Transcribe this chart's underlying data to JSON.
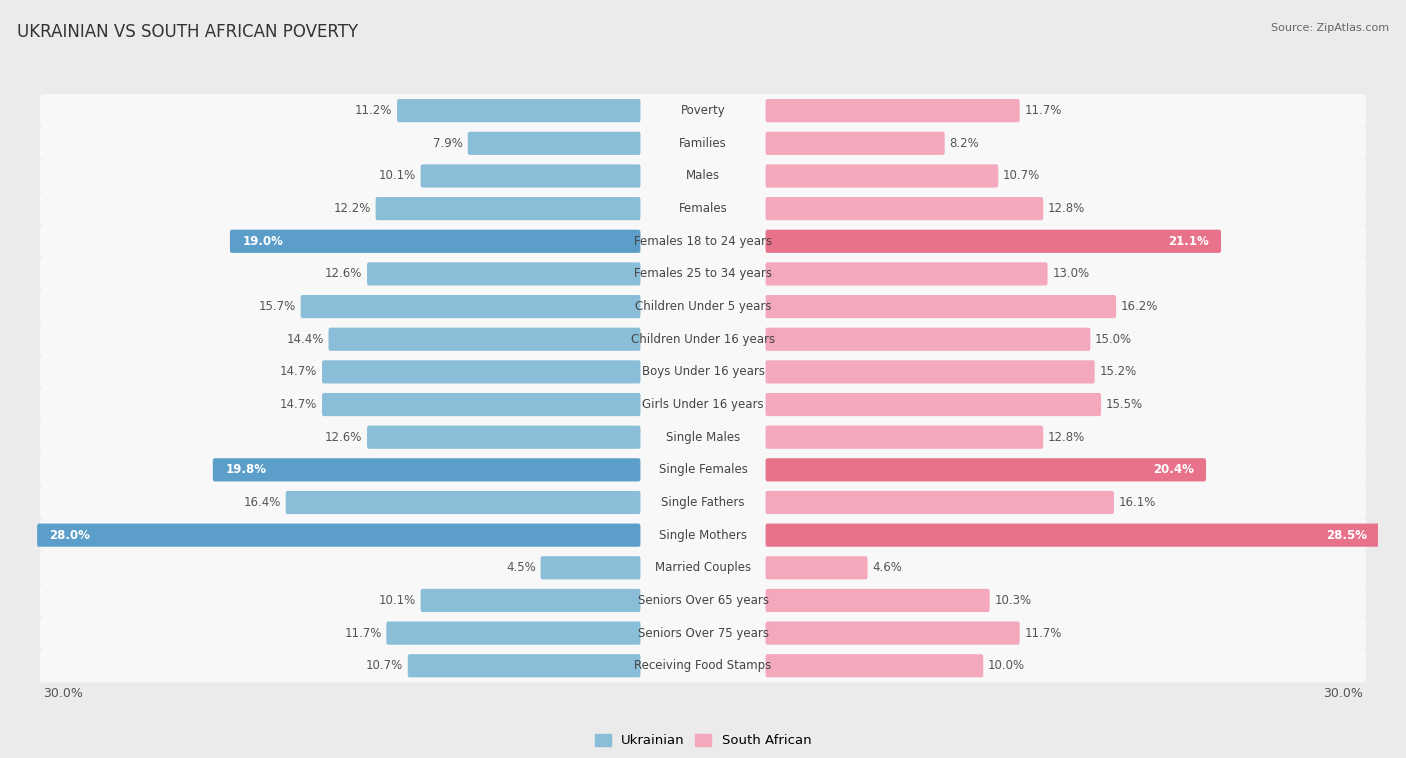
{
  "title": "UKRAINIAN VS SOUTH AFRICAN POVERTY",
  "source": "Source: ZipAtlas.com",
  "categories": [
    "Poverty",
    "Families",
    "Males",
    "Females",
    "Females 18 to 24 years",
    "Females 25 to 34 years",
    "Children Under 5 years",
    "Children Under 16 years",
    "Boys Under 16 years",
    "Girls Under 16 years",
    "Single Males",
    "Single Females",
    "Single Fathers",
    "Single Mothers",
    "Married Couples",
    "Seniors Over 65 years",
    "Seniors Over 75 years",
    "Receiving Food Stamps"
  ],
  "ukrainian": [
    11.2,
    7.9,
    10.1,
    12.2,
    19.0,
    12.6,
    15.7,
    14.4,
    14.7,
    14.7,
    12.6,
    19.8,
    16.4,
    28.0,
    4.5,
    10.1,
    11.7,
    10.7
  ],
  "south_african": [
    11.7,
    8.2,
    10.7,
    12.8,
    21.1,
    13.0,
    16.2,
    15.0,
    15.2,
    15.5,
    12.8,
    20.4,
    16.1,
    28.5,
    4.6,
    10.3,
    11.7,
    10.0
  ],
  "ukrainian_color": "#89bdd8",
  "south_african_color": "#f4a8bc",
  "highlight_ukrainian_color": "#5b9ec9",
  "highlight_south_african_color": "#e8728a",
  "background_color": "#ebebeb",
  "bar_bg_color": "#f8f8f8",
  "row_bg_color": "#f0f0f0",
  "max_value": 30.0,
  "label_fontsize": 8.5,
  "title_fontsize": 12,
  "source_fontsize": 8,
  "axis_label_fontsize": 9,
  "highlight_categories": [
    "Females 18 to 24 years",
    "Single Females",
    "Single Mothers"
  ]
}
